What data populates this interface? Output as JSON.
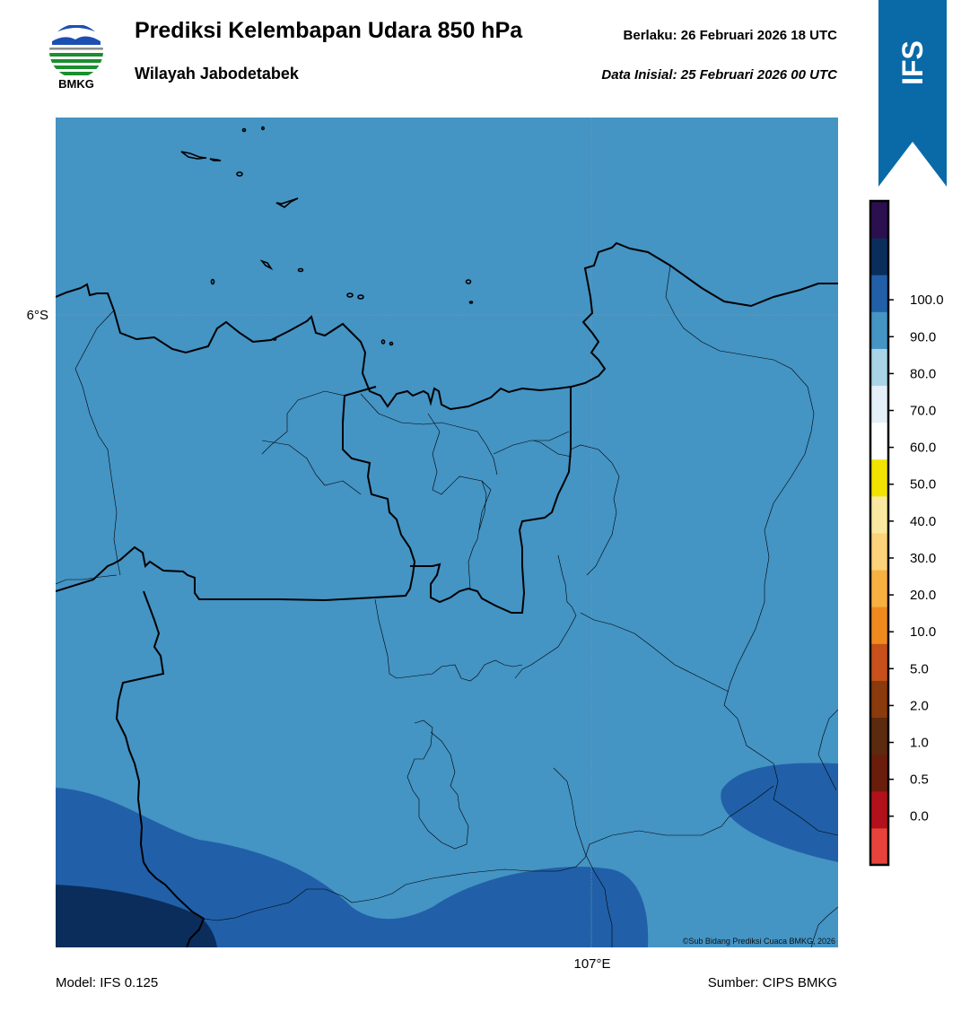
{
  "header": {
    "logo_text": "BMKG",
    "title": "Prediksi Kelembapan Udara 850 hPa",
    "subtitle": "Wilayah Jabodetabek",
    "valid": "Berlaku:  26 Februari 2026 18 UTC",
    "init": "Data Inisial:  25 Februari 2026 00 UTC"
  },
  "badge": {
    "text": "IFS",
    "color": "#0a6aa8"
  },
  "axes": {
    "lat_label": "6°S",
    "lon_label": "107°E"
  },
  "footer": {
    "model": "Model: IFS 0.125",
    "source": "Sumber: CIPS BMKG"
  },
  "credit": "©Sub Bidang Prediksi Cuaca BMKG, 2026",
  "colorbar": {
    "ticks": [
      "0.0",
      "0.5",
      "1.0",
      "2.0",
      "5.0",
      "10.0",
      "20.0",
      "30.0",
      "40.0",
      "50.0",
      "60.0",
      "70.0",
      "80.0",
      "90.0",
      "100.0"
    ],
    "colors_bottom_to_top": [
      "#e8433a",
      "#b2101b",
      "#6b1d0c",
      "#5c2a0e",
      "#8a3a0c",
      "#c8501a",
      "#f08a1e",
      "#f8b040",
      "#fcd27a",
      "#fae8a0",
      "#f2e200",
      "#ffffff",
      "#e4f0f8",
      "#a8d4e8",
      "#4494c4",
      "#2160a8",
      "#0b2d5c",
      "#2b0f4e"
    ]
  },
  "fill_colors": {
    "level_70_80": "#4494c4",
    "level_80_90": "#2160a8",
    "level_90_100": "#0b2d5c"
  }
}
